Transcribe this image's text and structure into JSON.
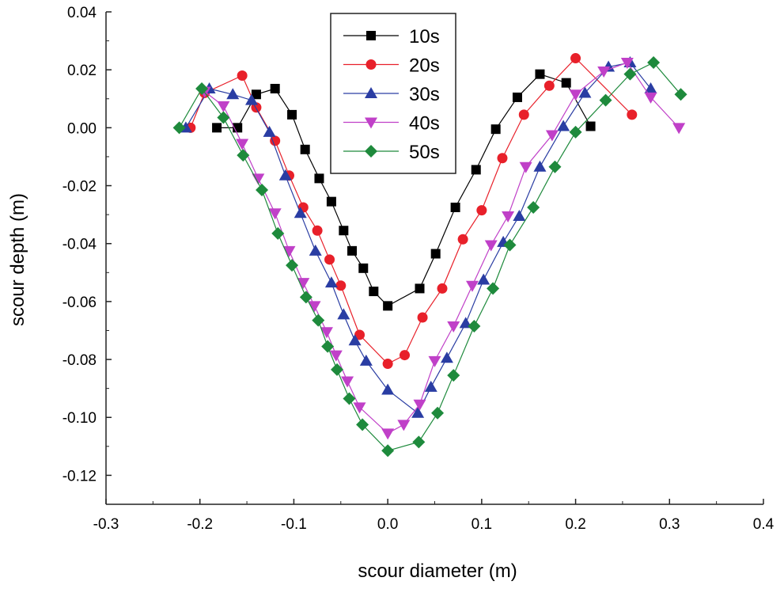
{
  "chart_data": {
    "type": "line",
    "title": "",
    "xlabel": "scour diameter (m)",
    "ylabel": "scour depth (m)",
    "xlim": [
      -0.3,
      0.4
    ],
    "ylim": [
      -0.13,
      0.04
    ],
    "xticks": [
      -0.3,
      -0.2,
      -0.1,
      0.0,
      0.1,
      0.2,
      0.3,
      0.4
    ],
    "xtick_labels": [
      "-0.3",
      "-0.2",
      "-0.1",
      "0.0",
      "0.1",
      "0.2",
      "0.3",
      "0.4"
    ],
    "yticks": [
      0.04,
      0.02,
      0.0,
      -0.02,
      -0.04,
      -0.06,
      -0.08,
      -0.1,
      -0.12
    ],
    "ytick_labels": [
      "0.04",
      "0.02",
      "0.00",
      "-0.02",
      "-0.04",
      "-0.06",
      "-0.08",
      "-0.10",
      "-0.12"
    ],
    "legend_position": "top-center",
    "series": [
      {
        "name": "10s",
        "marker": "square",
        "color": "#000000",
        "x": [
          -0.182,
          -0.16,
          -0.14,
          -0.12,
          -0.102,
          -0.088,
          -0.073,
          -0.06,
          -0.047,
          -0.038,
          -0.026,
          -0.015,
          0.0,
          0.034,
          0.051,
          0.072,
          0.094,
          0.115,
          0.138,
          0.162,
          0.19,
          0.216
        ],
        "y": [
          0.0,
          0.0,
          0.0115,
          0.0135,
          0.0045,
          -0.0075,
          -0.0175,
          -0.0255,
          -0.0355,
          -0.0425,
          -0.0485,
          -0.0565,
          -0.0615,
          -0.0555,
          -0.0435,
          -0.0275,
          -0.0145,
          -0.0005,
          0.0105,
          0.0185,
          0.0155,
          0.0005
        ]
      },
      {
        "name": "20s",
        "marker": "circle",
        "color": "#e8202a",
        "x": [
          -0.21,
          -0.195,
          -0.155,
          -0.14,
          -0.12,
          -0.105,
          -0.09,
          -0.075,
          -0.062,
          -0.05,
          -0.03,
          0.0,
          0.018,
          0.037,
          0.058,
          0.08,
          0.1,
          0.122,
          0.145,
          0.172,
          0.2,
          0.26
        ],
        "y": [
          0.0,
          0.012,
          0.018,
          0.007,
          -0.0045,
          -0.0165,
          -0.0275,
          -0.0355,
          -0.0455,
          -0.0545,
          -0.0715,
          -0.0815,
          -0.0785,
          -0.0655,
          -0.0555,
          -0.0385,
          -0.0285,
          -0.0105,
          0.0045,
          0.0145,
          0.024,
          0.0045
        ]
      },
      {
        "name": "30s",
        "marker": "triangle-up",
        "color": "#2a3da3",
        "x": [
          -0.215,
          -0.19,
          -0.165,
          -0.145,
          -0.126,
          -0.109,
          -0.093,
          -0.077,
          -0.06,
          -0.047,
          -0.035,
          -0.023,
          0.0,
          0.032,
          0.046,
          0.063,
          0.083,
          0.102,
          0.123,
          0.14,
          0.162,
          0.187,
          0.21,
          0.235,
          0.258,
          0.28
        ],
        "y": [
          0.0,
          0.0135,
          0.0115,
          0.0095,
          -0.0015,
          -0.0165,
          -0.0295,
          -0.0425,
          -0.0535,
          -0.0645,
          -0.0735,
          -0.0805,
          -0.0905,
          -0.0985,
          -0.0895,
          -0.0795,
          -0.0675,
          -0.0525,
          -0.0395,
          -0.0305,
          -0.0135,
          0.0005,
          0.012,
          0.021,
          0.0225,
          0.0135
        ]
      },
      {
        "name": "40s",
        "marker": "triangle-down",
        "color": "#c040c8",
        "x": [
          -0.195,
          -0.175,
          -0.155,
          -0.138,
          -0.12,
          -0.105,
          -0.09,
          -0.078,
          -0.065,
          -0.055,
          -0.043,
          -0.03,
          0.0,
          0.017,
          0.034,
          0.05,
          0.07,
          0.09,
          0.11,
          0.128,
          0.147,
          0.175,
          0.2,
          0.23,
          0.255,
          0.28,
          0.31
        ],
        "y": [
          0.0125,
          0.0075,
          -0.0055,
          -0.0175,
          -0.0295,
          -0.0425,
          -0.0535,
          -0.0615,
          -0.0705,
          -0.0785,
          -0.0875,
          -0.0965,
          -0.1055,
          -0.1025,
          -0.0955,
          -0.0805,
          -0.0685,
          -0.0545,
          -0.0405,
          -0.0305,
          -0.0135,
          -0.0025,
          0.0115,
          0.0195,
          0.0225,
          0.0105,
          0.0
        ]
      },
      {
        "name": "50s",
        "marker": "diamond",
        "color": "#1e8a3c",
        "x": [
          -0.222,
          -0.198,
          -0.175,
          -0.154,
          -0.134,
          -0.117,
          -0.102,
          -0.087,
          -0.074,
          -0.064,
          -0.054,
          -0.041,
          -0.027,
          0.0,
          0.033,
          0.053,
          0.07,
          0.092,
          0.112,
          0.13,
          0.155,
          0.178,
          0.2,
          0.232,
          0.258,
          0.283,
          0.312
        ],
        "y": [
          0.0,
          0.0135,
          0.0035,
          -0.0095,
          -0.0215,
          -0.0365,
          -0.0475,
          -0.0585,
          -0.0665,
          -0.0755,
          -0.0835,
          -0.0935,
          -0.1025,
          -0.1115,
          -0.1085,
          -0.0985,
          -0.0855,
          -0.0685,
          -0.0555,
          -0.0405,
          -0.0275,
          -0.0135,
          -0.0015,
          0.0095,
          0.0185,
          0.0225,
          0.0115
        ]
      }
    ]
  }
}
